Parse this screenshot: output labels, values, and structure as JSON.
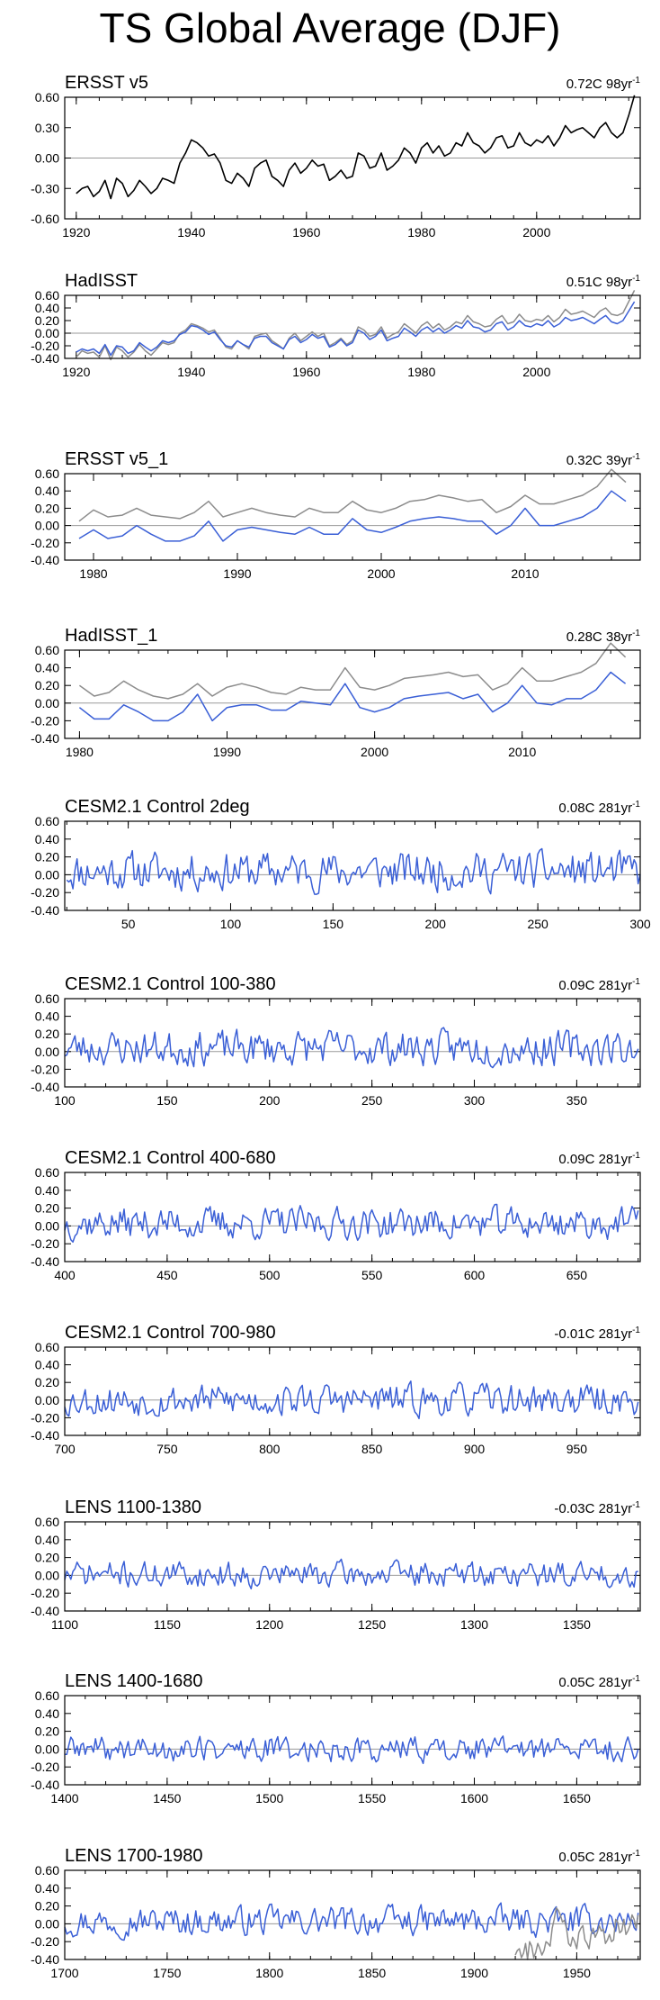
{
  "title": "TS Global Average (DJF)",
  "colors": {
    "obs": "#000000",
    "model": "#3a5fd6",
    "overlay": "#8c8c8c",
    "zero": "#9a9a9a"
  },
  "chart_data": [
    {
      "type": "line",
      "title": "ERSST v5",
      "annotation": "0.72C 98yr",
      "xlim": [
        1918,
        2018
      ],
      "ylim": [
        -0.6,
        0.6
      ],
      "xticks": [
        1920,
        1940,
        1960,
        1980,
        2000
      ],
      "yticks": [
        "0.60",
        "0.30",
        "0.00",
        "-0.30",
        "-0.60"
      ],
      "ytick_values": [
        0.6,
        0.3,
        0.0,
        -0.3,
        -0.6
      ],
      "series": [
        {
          "style": "black",
          "x_start": 1920,
          "values": [
            -0.35,
            -0.3,
            -0.28,
            -0.38,
            -0.33,
            -0.22,
            -0.4,
            -0.2,
            -0.25,
            -0.38,
            -0.32,
            -0.22,
            -0.28,
            -0.35,
            -0.3,
            -0.2,
            -0.22,
            -0.25,
            -0.05,
            0.05,
            0.18,
            0.15,
            0.1,
            0.02,
            0.04,
            -0.05,
            -0.22,
            -0.25,
            -0.15,
            -0.2,
            -0.28,
            -0.1,
            -0.05,
            -0.02,
            -0.18,
            -0.22,
            -0.28,
            -0.12,
            -0.05,
            -0.15,
            -0.1,
            -0.02,
            -0.08,
            -0.06,
            -0.22,
            -0.18,
            -0.12,
            -0.2,
            -0.18,
            0.05,
            0.02,
            -0.1,
            -0.08,
            0.05,
            -0.12,
            -0.08,
            -0.02,
            0.1,
            0.05,
            -0.05,
            0.1,
            0.15,
            0.05,
            0.12,
            0.02,
            0.05,
            0.15,
            0.12,
            0.25,
            0.15,
            0.12,
            0.05,
            0.1,
            0.2,
            0.22,
            0.1,
            0.12,
            0.25,
            0.15,
            0.12,
            0.18,
            0.15,
            0.22,
            0.12,
            0.2,
            0.32,
            0.25,
            0.28,
            0.3,
            0.25,
            0.2,
            0.3,
            0.35,
            0.25,
            0.2,
            0.25,
            0.42,
            0.62
          ]
        }
      ]
    },
    {
      "type": "line",
      "title": "HadISST",
      "annotation": "0.51C 98yr",
      "xlim": [
        1918,
        2018
      ],
      "ylim": [
        -0.4,
        0.6
      ],
      "xticks": [
        1920,
        1940,
        1960,
        1980,
        2000
      ],
      "yticks": [
        "0.60",
        "0.40",
        "0.20",
        "0.00",
        "-0.20",
        "-0.40"
      ],
      "ytick_values": [
        0.6,
        0.4,
        0.2,
        0.0,
        -0.2,
        -0.4
      ],
      "series": [
        {
          "style": "overlay",
          "x_start": 1920,
          "values": [
            -0.38,
            -0.28,
            -0.32,
            -0.3,
            -0.38,
            -0.2,
            -0.42,
            -0.22,
            -0.28,
            -0.38,
            -0.3,
            -0.18,
            -0.28,
            -0.35,
            -0.25,
            -0.15,
            -0.18,
            -0.15,
            0.0,
            0.05,
            0.15,
            0.12,
            0.08,
            0.02,
            0.05,
            -0.08,
            -0.22,
            -0.25,
            -0.12,
            -0.18,
            -0.25,
            -0.05,
            -0.02,
            0.0,
            -0.12,
            -0.18,
            -0.25,
            -0.08,
            0.0,
            -0.12,
            -0.05,
            0.02,
            -0.05,
            0.0,
            -0.2,
            -0.15,
            -0.08,
            -0.18,
            -0.12,
            0.1,
            0.05,
            -0.05,
            -0.02,
            0.1,
            -0.08,
            -0.02,
            0.02,
            0.15,
            0.08,
            0.0,
            0.12,
            0.18,
            0.08,
            0.15,
            0.05,
            0.1,
            0.18,
            0.15,
            0.28,
            0.18,
            0.15,
            0.1,
            0.12,
            0.22,
            0.28,
            0.15,
            0.18,
            0.3,
            0.2,
            0.18,
            0.22,
            0.2,
            0.28,
            0.18,
            0.25,
            0.38,
            0.3,
            0.32,
            0.35,
            0.3,
            0.25,
            0.35,
            0.4,
            0.3,
            0.28,
            0.32,
            0.5,
            0.68
          ]
        },
        {
          "style": "model",
          "x_start": 1920,
          "values": [
            -0.3,
            -0.25,
            -0.28,
            -0.25,
            -0.32,
            -0.18,
            -0.35,
            -0.2,
            -0.22,
            -0.32,
            -0.28,
            -0.15,
            -0.22,
            -0.28,
            -0.22,
            -0.12,
            -0.15,
            -0.12,
            -0.02,
            0.02,
            0.12,
            0.1,
            0.05,
            -0.02,
            0.02,
            -0.1,
            -0.2,
            -0.22,
            -0.12,
            -0.18,
            -0.22,
            -0.08,
            -0.05,
            -0.05,
            -0.15,
            -0.2,
            -0.25,
            -0.1,
            -0.05,
            -0.15,
            -0.1,
            -0.02,
            -0.08,
            -0.05,
            -0.22,
            -0.18,
            -0.1,
            -0.2,
            -0.15,
            0.05,
            0.0,
            -0.1,
            -0.05,
            0.05,
            -0.12,
            -0.08,
            -0.05,
            0.08,
            0.02,
            -0.05,
            0.05,
            0.1,
            0.02,
            0.08,
            0.0,
            0.05,
            0.12,
            0.08,
            0.2,
            0.1,
            0.08,
            0.02,
            0.05,
            0.15,
            0.18,
            0.05,
            0.1,
            0.2,
            0.12,
            0.1,
            0.15,
            0.12,
            0.2,
            0.1,
            0.15,
            0.25,
            0.2,
            0.22,
            0.25,
            0.2,
            0.15,
            0.22,
            0.28,
            0.18,
            0.15,
            0.2,
            0.35,
            0.5
          ]
        }
      ]
    },
    {
      "type": "line",
      "title": "ERSST v5_1",
      "annotation": "0.32C 39yr",
      "xlim": [
        1978,
        2018
      ],
      "ylim": [
        -0.4,
        0.6
      ],
      "xticks": [
        1980,
        1990,
        2000,
        2010
      ],
      "yticks": [
        "0.60",
        "0.40",
        "0.20",
        "0.00",
        "-0.20",
        "-0.40"
      ],
      "ytick_values": [
        0.6,
        0.4,
        0.2,
        0.0,
        -0.2,
        -0.4
      ],
      "series": [
        {
          "style": "overlay",
          "x_start": 1979,
          "values": [
            0.05,
            0.18,
            0.1,
            0.12,
            0.2,
            0.12,
            0.1,
            0.08,
            0.15,
            0.28,
            0.1,
            0.15,
            0.2,
            0.15,
            0.12,
            0.1,
            0.2,
            0.15,
            0.15,
            0.28,
            0.18,
            0.15,
            0.2,
            0.28,
            0.3,
            0.35,
            0.32,
            0.28,
            0.3,
            0.15,
            0.22,
            0.35,
            0.25,
            0.25,
            0.3,
            0.35,
            0.45,
            0.65,
            0.5
          ]
        },
        {
          "style": "model",
          "x_start": 1979,
          "values": [
            -0.15,
            -0.05,
            -0.15,
            -0.12,
            0.0,
            -0.1,
            -0.18,
            -0.18,
            -0.12,
            0.05,
            -0.18,
            -0.05,
            -0.02,
            -0.05,
            -0.08,
            -0.1,
            -0.02,
            -0.1,
            -0.1,
            0.08,
            -0.05,
            -0.08,
            -0.02,
            0.05,
            0.08,
            0.1,
            0.08,
            0.05,
            0.05,
            -0.1,
            0.0,
            0.2,
            0.0,
            0.0,
            0.05,
            0.1,
            0.2,
            0.4,
            0.28
          ]
        }
      ]
    },
    {
      "type": "line",
      "title": "HadISST_1",
      "annotation": "0.28C 38yr",
      "xlim": [
        1979,
        2018
      ],
      "ylim": [
        -0.4,
        0.6
      ],
      "xticks": [
        1980,
        1990,
        2000,
        2010
      ],
      "yticks": [
        "0.60",
        "0.40",
        "0.20",
        "0.00",
        "-0.20",
        "-0.40"
      ],
      "ytick_values": [
        0.6,
        0.4,
        0.2,
        0.0,
        -0.2,
        -0.4
      ],
      "series": [
        {
          "style": "overlay",
          "x_start": 1980,
          "values": [
            0.2,
            0.08,
            0.12,
            0.25,
            0.15,
            0.08,
            0.05,
            0.1,
            0.22,
            0.08,
            0.18,
            0.22,
            0.18,
            0.12,
            0.1,
            0.18,
            0.15,
            0.15,
            0.4,
            0.18,
            0.15,
            0.2,
            0.28,
            0.3,
            0.32,
            0.35,
            0.3,
            0.32,
            0.15,
            0.22,
            0.4,
            0.25,
            0.25,
            0.3,
            0.35,
            0.45,
            0.68,
            0.52
          ]
        },
        {
          "style": "model",
          "x_start": 1980,
          "values": [
            -0.05,
            -0.18,
            -0.18,
            -0.02,
            -0.1,
            -0.2,
            -0.2,
            -0.1,
            0.1,
            -0.2,
            -0.05,
            -0.02,
            -0.02,
            -0.08,
            -0.08,
            0.02,
            0.0,
            -0.02,
            0.22,
            -0.05,
            -0.1,
            -0.05,
            0.05,
            0.08,
            0.1,
            0.12,
            0.05,
            0.1,
            -0.1,
            0.0,
            0.2,
            0.0,
            -0.02,
            0.05,
            0.05,
            0.15,
            0.35,
            0.22
          ]
        }
      ]
    },
    {
      "type": "line",
      "title": "CESM2.1 Control 2deg",
      "annotation": "0.08C 281yr",
      "xlim": [
        19,
        300
      ],
      "ylim": [
        -0.4,
        0.6
      ],
      "xticks": [
        50,
        100,
        150,
        200,
        250,
        300
      ],
      "yticks": [
        "0.60",
        "0.40",
        "0.20",
        "0.00",
        "-0.20",
        "-0.40"
      ],
      "ytick_values": [
        0.6,
        0.4,
        0.2,
        0.0,
        -0.2,
        -0.4
      ],
      "series": [
        {
          "style": "model",
          "x_start": 20,
          "n": 281,
          "seed": 11,
          "mean": 0.04,
          "amplitude": 0.12,
          "min": -0.35,
          "max": 0.42
        }
      ]
    },
    {
      "type": "line",
      "title": "CESM2.1 Control 100-380",
      "annotation": "0.09C 281yr",
      "xlim": [
        100,
        381
      ],
      "ylim": [
        -0.4,
        0.6
      ],
      "xticks": [
        100,
        150,
        200,
        250,
        300,
        350
      ],
      "yticks": [
        "0.60",
        "0.40",
        "0.20",
        "0.00",
        "-0.20",
        "-0.40"
      ],
      "ytick_values": [
        0.6,
        0.4,
        0.2,
        0.0,
        -0.2,
        -0.4
      ],
      "series": [
        {
          "style": "model",
          "x_start": 100,
          "n": 281,
          "seed": 23,
          "mean": 0.04,
          "amplitude": 0.11,
          "min": -0.38,
          "max": 0.32
        }
      ]
    },
    {
      "type": "line",
      "title": "CESM2.1 Control 400-680",
      "annotation": "0.09C 281yr",
      "xlim": [
        400,
        681
      ],
      "ylim": [
        -0.4,
        0.6
      ],
      "xticks": [
        400,
        450,
        500,
        550,
        600,
        650
      ],
      "yticks": [
        "0.60",
        "0.40",
        "0.20",
        "0.00",
        "-0.20",
        "-0.40"
      ],
      "ytick_values": [
        0.6,
        0.4,
        0.2,
        0.0,
        -0.2,
        -0.4
      ],
      "series": [
        {
          "style": "model",
          "x_start": 400,
          "n": 281,
          "seed": 37,
          "mean": 0.03,
          "amplitude": 0.1,
          "min": -0.22,
          "max": 0.3
        }
      ]
    },
    {
      "type": "line",
      "title": "CESM2.1 Control 700-980",
      "annotation": "-0.01C 281yr",
      "xlim": [
        700,
        981
      ],
      "ylim": [
        -0.4,
        0.6
      ],
      "xticks": [
        700,
        750,
        800,
        850,
        900,
        950
      ],
      "yticks": [
        "0.60",
        "0.40",
        "0.20",
        "0.00",
        "-0.20",
        "-0.40"
      ],
      "ytick_values": [
        0.6,
        0.4,
        0.2,
        0.0,
        -0.2,
        -0.4
      ],
      "series": [
        {
          "style": "model",
          "x_start": 700,
          "n": 281,
          "seed": 53,
          "mean": 0.0,
          "amplitude": 0.1,
          "min": -0.26,
          "max": 0.24
        }
      ]
    },
    {
      "type": "line",
      "title": "LENS 1100-1380",
      "annotation": "-0.03C 281yr",
      "xlim": [
        1100,
        1381
      ],
      "ylim": [
        -0.4,
        0.6
      ],
      "xticks": [
        1100,
        1150,
        1200,
        1250,
        1300,
        1350
      ],
      "yticks": [
        "0.60",
        "0.40",
        "0.20",
        "0.00",
        "-0.20",
        "-0.40"
      ],
      "ytick_values": [
        0.6,
        0.4,
        0.2,
        0.0,
        -0.2,
        -0.4
      ],
      "series": [
        {
          "style": "model",
          "x_start": 1100,
          "n": 281,
          "seed": 71,
          "mean": 0.01,
          "amplitude": 0.08,
          "min": -0.2,
          "max": 0.22
        }
      ]
    },
    {
      "type": "line",
      "title": "LENS 1400-1680",
      "annotation": "0.05C 281yr",
      "xlim": [
        1400,
        1681
      ],
      "ylim": [
        -0.4,
        0.6
      ],
      "xticks": [
        1400,
        1450,
        1500,
        1550,
        1600,
        1650
      ],
      "yticks": [
        "0.60",
        "0.40",
        "0.20",
        "0.00",
        "-0.20",
        "-0.40"
      ],
      "ytick_values": [
        0.6,
        0.4,
        0.2,
        0.0,
        -0.2,
        -0.4
      ],
      "series": [
        {
          "style": "model",
          "x_start": 1400,
          "n": 281,
          "seed": 89,
          "mean": 0.0,
          "amplitude": 0.08,
          "min": -0.2,
          "max": 0.28
        }
      ]
    },
    {
      "type": "line",
      "title": "LENS 1700-1980",
      "annotation": "0.05C 281yr",
      "xlim": [
        1700,
        1981
      ],
      "ylim": [
        -0.4,
        0.6
      ],
      "xticks": [
        1700,
        1750,
        1800,
        1850,
        1900,
        1950
      ],
      "yticks": [
        "0.60",
        "0.40",
        "0.20",
        "0.00",
        "-0.20",
        "-0.40"
      ],
      "ytick_values": [
        0.6,
        0.4,
        0.2,
        0.0,
        -0.2,
        -0.4
      ],
      "series": [
        {
          "style": "model",
          "x_start": 1700,
          "n": 281,
          "seed": 97,
          "mean": 0.03,
          "amplitude": 0.09,
          "min": -0.25,
          "max": 0.28
        },
        {
          "style": "overlay",
          "x_start": 1920,
          "values": [
            -0.35,
            -0.3,
            -0.28,
            -0.38,
            -0.33,
            -0.22,
            -0.4,
            -0.2,
            -0.25,
            -0.38,
            -0.32,
            -0.22,
            -0.28,
            -0.35,
            -0.3,
            -0.2,
            -0.22,
            -0.25,
            -0.05,
            0.05,
            0.18,
            0.15,
            0.1,
            0.02,
            0.04,
            -0.05,
            -0.22,
            -0.25,
            -0.15,
            -0.2,
            -0.28,
            -0.1,
            -0.05,
            -0.02,
            -0.18,
            -0.22,
            -0.28,
            -0.12,
            -0.05,
            -0.15,
            -0.1,
            -0.02,
            -0.08,
            -0.06,
            -0.22,
            -0.18,
            -0.12,
            -0.2,
            -0.18,
            0.05,
            0.02,
            -0.1,
            -0.08,
            0.05,
            -0.12,
            -0.08,
            -0.02,
            0.1,
            0.05,
            -0.05,
            0.1
          ]
        }
      ]
    }
  ]
}
